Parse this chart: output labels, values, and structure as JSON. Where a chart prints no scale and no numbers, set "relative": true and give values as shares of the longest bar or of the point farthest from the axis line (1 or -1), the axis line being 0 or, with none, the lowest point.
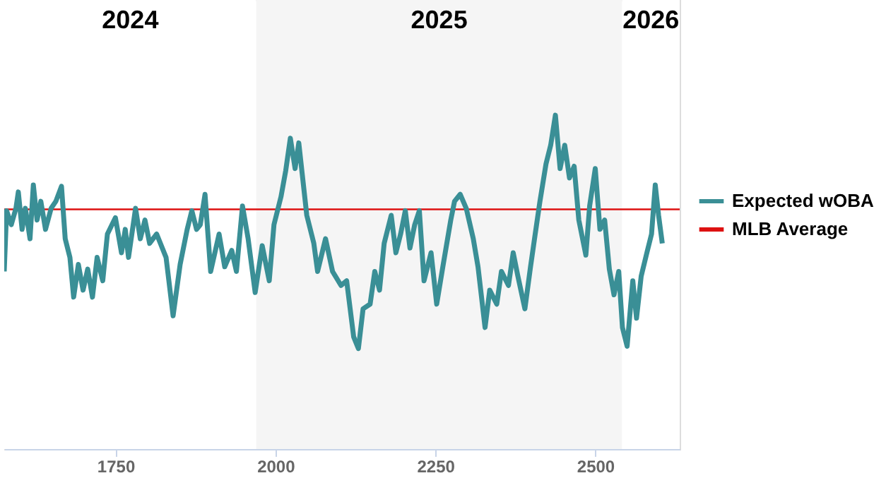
{
  "chart_data": {
    "type": "line",
    "relative": true,
    "xlim": [
      1576,
      2632
    ],
    "xticks": [
      1750,
      2000,
      2250,
      2500
    ],
    "legend": "right",
    "line_style": "solid",
    "marker": "none",
    "bands": [
      {
        "axis": "x",
        "from": 1576,
        "to": 1970,
        "label": "2024",
        "color": "#ffffff"
      },
      {
        "axis": "x",
        "from": 1970,
        "to": 2542,
        "label": "2025",
        "color": "#f5f5f5"
      },
      {
        "axis": "x",
        "from": 2542,
        "to": 2632,
        "label": "2026",
        "color": "#ffffff"
      }
    ],
    "series": [
      {
        "name": "Expected wOBA",
        "color": "#3a8f96",
        "x": [
          1576,
          1579.7,
          1587,
          1594.3,
          1598,
          1603.9,
          1609,
          1616.3,
          1621.5,
          1627.3,
          1633.2,
          1640.5,
          1649.3,
          1656.7,
          1665.5,
          1671.3,
          1678.7,
          1684.5,
          1691.9,
          1699.2,
          1706.5,
          1713.9,
          1721.2,
          1730,
          1737.3,
          1749.8,
          1759.3,
          1765.2,
          1770.3,
          1781.3,
          1788.7,
          1796,
          1803.3,
          1814.3,
          1829,
          1840,
          1851,
          1862,
          1869.3,
          1876.7,
          1882.5,
          1889.9,
          1898.7,
          1911.9,
          1920.7,
          1931.7,
          1939,
          1948.5,
          1957.3,
          1968.3,
          1979.3,
          1990.3,
          1997.7,
          2008.7,
          2016,
          2023.3,
          2030.7,
          2036.5,
          2049,
          2060,
          2065.9,
          2078.3,
          2089.3,
          2102.5,
          2111.3,
          2122.3,
          2129.7,
          2137,
          2148,
          2155.3,
          2162.7,
          2170,
          2181,
          2188.3,
          2195.7,
          2203,
          2210.3,
          2217.7,
          2225,
          2232.3,
          2243.3,
          2252.1,
          2261.7,
          2274.1,
          2280,
          2288.8,
          2298.3,
          2309.3,
          2316.7,
          2327.7,
          2335,
          2346,
          2353.3,
          2364.3,
          2371.7,
          2379,
          2390,
          2398.8,
          2406.1,
          2413.5,
          2423,
          2430.3,
          2437.7,
          2445,
          2452.3,
          2459.7,
          2467,
          2474.3,
          2485.3,
          2491.2,
          2500,
          2507.3,
          2514.7,
          2522,
          2529.3,
          2536.7,
          2542.5,
          2549.8,
          2558.7,
          2564.5,
          2571.8,
          2580.7,
          2588,
          2593.8,
          2599,
          2604.8
        ],
        "values": [
          0.532,
          0.714,
          0.672,
          0.721,
          0.77,
          0.658,
          0.721,
          0.63,
          0.791,
          0.686,
          0.742,
          0.658,
          0.721,
          0.742,
          0.787,
          0.63,
          0.574,
          0.455,
          0.553,
          0.476,
          0.539,
          0.455,
          0.574,
          0.504,
          0.644,
          0.693,
          0.588,
          0.658,
          0.574,
          0.721,
          0.63,
          0.686,
          0.616,
          0.644,
          0.574,
          0.399,
          0.553,
          0.658,
          0.714,
          0.658,
          0.672,
          0.763,
          0.532,
          0.644,
          0.546,
          0.595,
          0.532,
          0.728,
          0.63,
          0.469,
          0.609,
          0.504,
          0.672,
          0.756,
          0.833,
          0.931,
          0.84,
          0.917,
          0.7,
          0.616,
          0.532,
          0.63,
          0.532,
          0.49,
          0.504,
          0.336,
          0.301,
          0.42,
          0.434,
          0.532,
          0.476,
          0.616,
          0.7,
          0.588,
          0.644,
          0.714,
          0.602,
          0.672,
          0.714,
          0.504,
          0.588,
          0.434,
          0.546,
          0.686,
          0.742,
          0.763,
          0.721,
          0.63,
          0.546,
          0.364,
          0.476,
          0.434,
          0.532,
          0.49,
          0.588,
          0.518,
          0.42,
          0.546,
          0.644,
          0.742,
          0.854,
          0.91,
          1,
          0.84,
          0.91,
          0.812,
          0.847,
          0.686,
          0.581,
          0.728,
          0.84,
          0.658,
          0.686,
          0.539,
          0.462,
          0.532,
          0.364,
          0.308,
          0.504,
          0.392,
          0.518,
          0.588,
          0.644,
          0.791,
          0.7,
          0.616
        ]
      }
    ],
    "ref_lines": [
      {
        "axis": "y",
        "value": 0.718,
        "label": "MLB Average",
        "color": "#dd1111"
      }
    ]
  }
}
